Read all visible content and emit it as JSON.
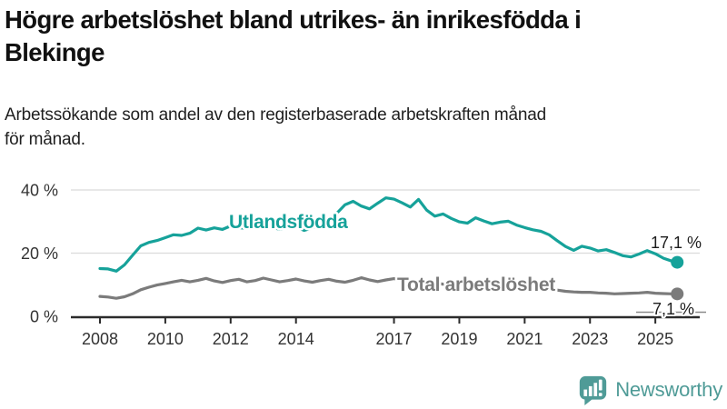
{
  "header": {
    "title_lines": [
      "Högre arbetslöshet bland utrikes- än inrikesfödda i",
      "Blekinge"
    ],
    "subtitle_lines": [
      "Arbetssökande som andel av den registerbaserade arbetskraften månad",
      "för månad."
    ]
  },
  "chart_data": {
    "type": "line",
    "title": "Högre arbetslöshet bland utrikes- än inrikesfödda i Blekinge",
    "subtitle": "Arbetssökande som andel av den registerbaserade arbetskraften månad för månad.",
    "unit": "%",
    "x_range": [
      2008,
      2025.75
    ],
    "ylim": [
      0,
      42
    ],
    "grid": "horizontal-only",
    "x_ticks": [
      2008,
      2010,
      2012,
      2014,
      2017,
      2019,
      2021,
      2023,
      2025
    ],
    "y_ticks": [
      {
        "value": 0,
        "label": "0 %"
      },
      {
        "value": 20,
        "label": "20 %"
      },
      {
        "value": 40,
        "label": "40 %"
      }
    ],
    "series": [
      {
        "name": "Utlandsfödda",
        "color": "#16a29a",
        "end_label": "17,1 %",
        "end_value": 17.1,
        "points": [
          [
            2008.0,
            15.1
          ],
          [
            2008.25,
            15.0
          ],
          [
            2008.5,
            14.3
          ],
          [
            2008.75,
            16.3
          ],
          [
            2009.0,
            19.3
          ],
          [
            2009.25,
            22.3
          ],
          [
            2009.5,
            23.4
          ],
          [
            2009.75,
            24.0
          ],
          [
            2010.0,
            24.9
          ],
          [
            2010.25,
            25.8
          ],
          [
            2010.5,
            25.6
          ],
          [
            2010.75,
            26.3
          ],
          [
            2011.0,
            27.9
          ],
          [
            2011.25,
            27.3
          ],
          [
            2011.5,
            28.0
          ],
          [
            2011.75,
            27.5
          ],
          [
            2012.0,
            28.6
          ],
          [
            2012.25,
            28.1
          ],
          [
            2012.5,
            27.8
          ],
          [
            2012.75,
            28.3
          ],
          [
            2013.0,
            28.6
          ],
          [
            2013.25,
            28.1
          ],
          [
            2013.5,
            27.6
          ],
          [
            2013.75,
            28.0
          ],
          [
            2014.0,
            28.3
          ],
          [
            2014.25,
            27.2
          ],
          [
            2014.5,
            28.0
          ],
          [
            2014.75,
            29.3
          ],
          [
            2015.0,
            30.8
          ],
          [
            2015.25,
            32.6
          ],
          [
            2015.5,
            35.3
          ],
          [
            2015.75,
            36.4
          ],
          [
            2016.0,
            34.9
          ],
          [
            2016.25,
            34.0
          ],
          [
            2016.5,
            35.8
          ],
          [
            2016.75,
            37.5
          ],
          [
            2017.0,
            37.1
          ],
          [
            2017.25,
            35.9
          ],
          [
            2017.5,
            34.6
          ],
          [
            2017.75,
            37.0
          ],
          [
            2018.0,
            33.6
          ],
          [
            2018.25,
            31.7
          ],
          [
            2018.5,
            32.4
          ],
          [
            2018.75,
            31.0
          ],
          [
            2019.0,
            29.9
          ],
          [
            2019.25,
            29.5
          ],
          [
            2019.5,
            31.2
          ],
          [
            2019.75,
            30.2
          ],
          [
            2020.0,
            29.3
          ],
          [
            2020.25,
            29.8
          ],
          [
            2020.5,
            30.1
          ],
          [
            2020.75,
            28.9
          ],
          [
            2021.0,
            28.1
          ],
          [
            2021.25,
            27.4
          ],
          [
            2021.5,
            26.9
          ],
          [
            2021.75,
            25.8
          ],
          [
            2022.0,
            23.9
          ],
          [
            2022.25,
            22.1
          ],
          [
            2022.5,
            20.9
          ],
          [
            2022.75,
            22.2
          ],
          [
            2023.0,
            21.6
          ],
          [
            2023.25,
            20.7
          ],
          [
            2023.5,
            21.1
          ],
          [
            2023.75,
            20.2
          ],
          [
            2024.0,
            19.2
          ],
          [
            2024.25,
            18.8
          ],
          [
            2024.5,
            19.7
          ],
          [
            2024.75,
            20.8
          ],
          [
            2025.0,
            19.8
          ],
          [
            2025.25,
            18.4
          ],
          [
            2025.5,
            17.5
          ],
          [
            2025.67,
            17.1
          ]
        ]
      },
      {
        "name": "Total arbetslöshet",
        "color": "#7b7b7b",
        "end_label": "7,1 %",
        "end_value": 7.1,
        "points": [
          [
            2008.0,
            6.3
          ],
          [
            2008.25,
            6.1
          ],
          [
            2008.5,
            5.7
          ],
          [
            2008.75,
            6.2
          ],
          [
            2009.0,
            7.1
          ],
          [
            2009.25,
            8.4
          ],
          [
            2009.5,
            9.2
          ],
          [
            2009.75,
            9.9
          ],
          [
            2010.0,
            10.4
          ],
          [
            2010.25,
            10.9
          ],
          [
            2010.5,
            11.4
          ],
          [
            2010.75,
            10.9
          ],
          [
            2011.0,
            11.4
          ],
          [
            2011.25,
            12.0
          ],
          [
            2011.5,
            11.2
          ],
          [
            2011.75,
            10.7
          ],
          [
            2012.0,
            11.3
          ],
          [
            2012.25,
            11.7
          ],
          [
            2012.5,
            10.9
          ],
          [
            2012.75,
            11.3
          ],
          [
            2013.0,
            12.1
          ],
          [
            2013.25,
            11.5
          ],
          [
            2013.5,
            10.9
          ],
          [
            2013.75,
            11.3
          ],
          [
            2014.0,
            11.8
          ],
          [
            2014.25,
            11.2
          ],
          [
            2014.5,
            10.8
          ],
          [
            2014.75,
            11.3
          ],
          [
            2015.0,
            11.7
          ],
          [
            2015.25,
            11.1
          ],
          [
            2015.5,
            10.8
          ],
          [
            2015.75,
            11.4
          ],
          [
            2016.0,
            12.2
          ],
          [
            2016.25,
            11.5
          ],
          [
            2016.5,
            11.0
          ],
          [
            2016.75,
            11.5
          ],
          [
            2017.0,
            11.9
          ],
          [
            2017.25,
            11.4
          ],
          [
            2017.5,
            11.0
          ],
          [
            2017.75,
            10.8
          ],
          [
            2018.0,
            10.9
          ],
          [
            2018.25,
            10.5
          ],
          [
            2018.5,
            10.2
          ],
          [
            2018.75,
            10.4
          ],
          [
            2019.0,
            10.2
          ],
          [
            2019.25,
            9.9
          ],
          [
            2019.5,
            9.7
          ],
          [
            2019.75,
            9.9
          ],
          [
            2020.0,
            9.8
          ],
          [
            2020.25,
            10.6
          ],
          [
            2020.5,
            10.9
          ],
          [
            2020.75,
            10.5
          ],
          [
            2021.0,
            10.1
          ],
          [
            2021.25,
            9.6
          ],
          [
            2021.5,
            9.1
          ],
          [
            2021.75,
            8.7
          ],
          [
            2022.0,
            8.3
          ],
          [
            2022.25,
            7.9
          ],
          [
            2022.5,
            7.7
          ],
          [
            2022.75,
            7.6
          ],
          [
            2023.0,
            7.6
          ],
          [
            2023.25,
            7.4
          ],
          [
            2023.5,
            7.3
          ],
          [
            2023.75,
            7.1
          ],
          [
            2024.0,
            7.2
          ],
          [
            2024.25,
            7.3
          ],
          [
            2024.5,
            7.4
          ],
          [
            2024.75,
            7.6
          ],
          [
            2025.0,
            7.3
          ],
          [
            2025.25,
            7.2
          ],
          [
            2025.5,
            7.1
          ],
          [
            2025.67,
            7.1
          ]
        ]
      }
    ]
  },
  "footer": {
    "brand": "Newsworthy"
  }
}
